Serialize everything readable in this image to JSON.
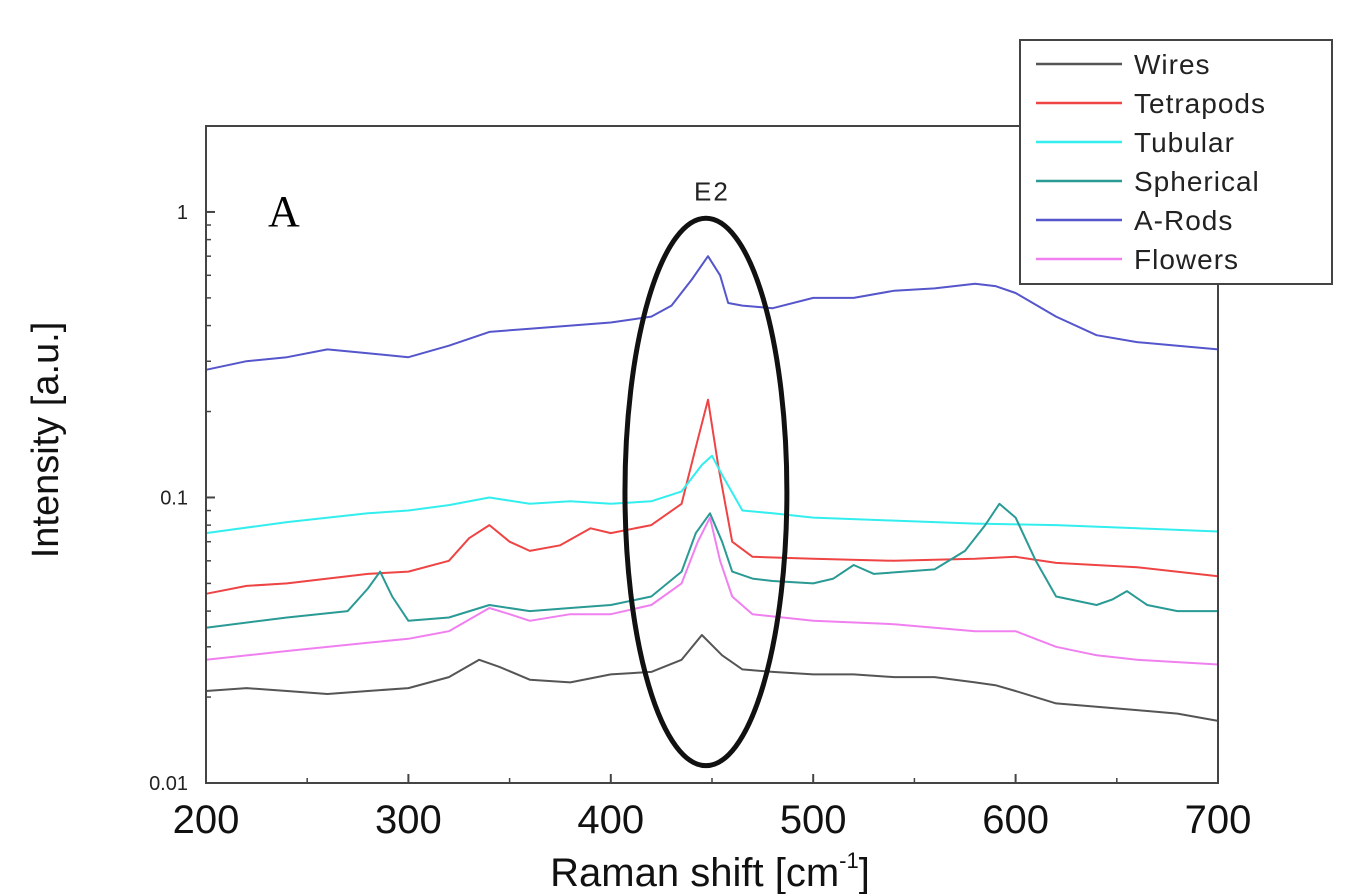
{
  "chart_data": {
    "type": "line",
    "panel_label": "A",
    "xlabel": "Raman shift [cm",
    "xlabel_sup": "-1",
    "xlabel_close": "]",
    "ylabel": "Intensity [a.u.]",
    "xlim": [
      200,
      700
    ],
    "ylim": [
      0.01,
      2
    ],
    "y_scale": "log",
    "x_ticks": [
      "200",
      "300",
      "400",
      "500",
      "600",
      "700"
    ],
    "x_tick_values": [
      200,
      300,
      400,
      500,
      600,
      700
    ],
    "y_ticks": [
      "0.01",
      "0.1",
      "1"
    ],
    "y_tick_values": [
      0.01,
      0.1,
      1
    ],
    "annotation": {
      "text": "E2",
      "center_x": 447,
      "x_halfwidth": 40,
      "y_range": [
        0.0115,
        0.95
      ]
    },
    "legend": {
      "placement": "top-right"
    },
    "series": [
      {
        "name": "Wires",
        "color": "#555555",
        "x": [
          200,
          220,
          240,
          260,
          280,
          300,
          320,
          335,
          345,
          360,
          380,
          400,
          420,
          435,
          445,
          455,
          465,
          480,
          500,
          520,
          540,
          560,
          580,
          590,
          600,
          620,
          640,
          660,
          680,
          700
        ],
        "y": [
          0.021,
          0.0215,
          0.021,
          0.0205,
          0.021,
          0.0215,
          0.0235,
          0.027,
          0.0255,
          0.023,
          0.0225,
          0.024,
          0.0245,
          0.027,
          0.033,
          0.028,
          0.025,
          0.0245,
          0.024,
          0.024,
          0.0235,
          0.0235,
          0.0225,
          0.022,
          0.021,
          0.019,
          0.0185,
          0.018,
          0.0175,
          0.0165
        ]
      },
      {
        "name": "Tetrapods",
        "color": "#ee4444",
        "x": [
          200,
          220,
          240,
          260,
          280,
          300,
          320,
          330,
          340,
          350,
          360,
          375,
          390,
          400,
          420,
          435,
          442,
          448,
          453,
          460,
          470,
          500,
          540,
          580,
          600,
          620,
          660,
          700
        ],
        "y": [
          0.046,
          0.049,
          0.05,
          0.052,
          0.054,
          0.055,
          0.06,
          0.072,
          0.08,
          0.07,
          0.065,
          0.068,
          0.078,
          0.075,
          0.08,
          0.095,
          0.15,
          0.22,
          0.13,
          0.07,
          0.062,
          0.061,
          0.06,
          0.061,
          0.062,
          0.059,
          0.057,
          0.053
        ]
      },
      {
        "name": "Tubular",
        "color": "#33eeee",
        "x": [
          200,
          240,
          280,
          300,
          320,
          340,
          360,
          380,
          400,
          420,
          435,
          445,
          450,
          455,
          465,
          480,
          500,
          540,
          580,
          620,
          660,
          700
        ],
        "y": [
          0.075,
          0.082,
          0.088,
          0.09,
          0.094,
          0.1,
          0.095,
          0.097,
          0.095,
          0.097,
          0.105,
          0.13,
          0.14,
          0.12,
          0.09,
          0.088,
          0.085,
          0.083,
          0.081,
          0.08,
          0.078,
          0.076
        ]
      },
      {
        "name": "Spherical",
        "color": "#2a9a95",
        "x": [
          200,
          240,
          270,
          280,
          286,
          292,
          300,
          320,
          340,
          360,
          380,
          400,
          420,
          435,
          442,
          449,
          455,
          460,
          470,
          480,
          500,
          510,
          520,
          530,
          560,
          575,
          585,
          592,
          600,
          610,
          620,
          640,
          648,
          655,
          665,
          680,
          700
        ],
        "y": [
          0.035,
          0.038,
          0.04,
          0.048,
          0.055,
          0.045,
          0.037,
          0.038,
          0.042,
          0.04,
          0.041,
          0.042,
          0.045,
          0.055,
          0.075,
          0.088,
          0.07,
          0.055,
          0.052,
          0.051,
          0.05,
          0.052,
          0.058,
          0.054,
          0.056,
          0.065,
          0.08,
          0.095,
          0.085,
          0.06,
          0.045,
          0.042,
          0.044,
          0.047,
          0.042,
          0.04,
          0.04
        ]
      },
      {
        "name": "A-Rods",
        "color": "#5555cc",
        "x": [
          200,
          220,
          240,
          260,
          280,
          300,
          320,
          340,
          360,
          380,
          400,
          420,
          430,
          440,
          448,
          454,
          458,
          465,
          480,
          500,
          520,
          540,
          560,
          580,
          590,
          600,
          620,
          640,
          660,
          680,
          700
        ],
        "y": [
          0.28,
          0.3,
          0.31,
          0.33,
          0.32,
          0.31,
          0.34,
          0.38,
          0.39,
          0.4,
          0.41,
          0.43,
          0.47,
          0.58,
          0.7,
          0.6,
          0.48,
          0.47,
          0.46,
          0.5,
          0.5,
          0.53,
          0.54,
          0.56,
          0.55,
          0.52,
          0.43,
          0.37,
          0.35,
          0.34,
          0.33
        ]
      },
      {
        "name": "Flowers",
        "color": "#f080f0",
        "x": [
          200,
          240,
          280,
          300,
          320,
          340,
          350,
          360,
          380,
          400,
          420,
          435,
          443,
          449,
          454,
          460,
          470,
          500,
          540,
          580,
          600,
          620,
          640,
          660,
          700
        ],
        "y": [
          0.027,
          0.029,
          0.031,
          0.032,
          0.034,
          0.041,
          0.039,
          0.037,
          0.039,
          0.039,
          0.042,
          0.05,
          0.07,
          0.085,
          0.06,
          0.045,
          0.039,
          0.037,
          0.036,
          0.034,
          0.034,
          0.03,
          0.028,
          0.027,
          0.026
        ]
      }
    ]
  }
}
